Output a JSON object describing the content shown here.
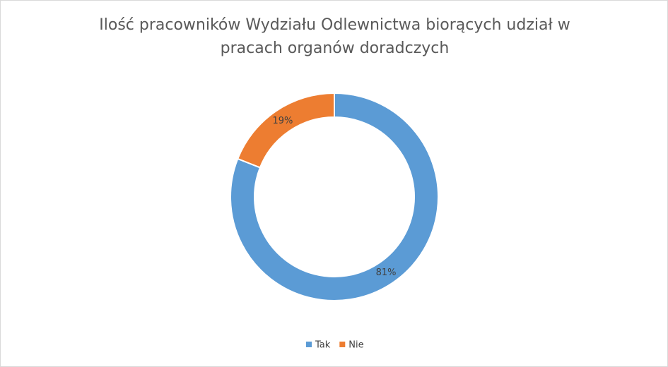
{
  "chart_data": {
    "type": "donut",
    "title": "Ilość pracowników Wydziału Odlewnictwa biorących udział w pracach organów doradczych",
    "categories": [
      "Tak",
      "Nie"
    ],
    "values": [
      81,
      19
    ],
    "value_labels": [
      "81%",
      "19%"
    ],
    "colors": [
      "#5b9bd5",
      "#ed7d31"
    ],
    "legend": "bottom"
  }
}
